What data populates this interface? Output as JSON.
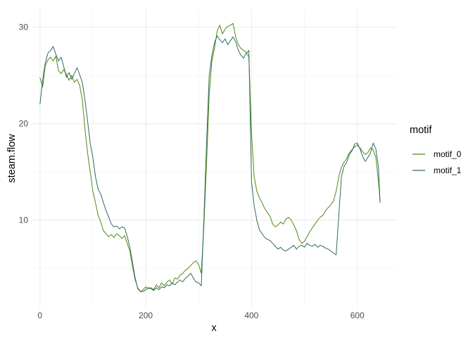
{
  "chart_data": {
    "type": "line",
    "title": "",
    "xlabel": "x",
    "ylabel": "steam.flow",
    "xlim": [
      -17,
      675
    ],
    "ylim": [
      1.0,
      31.8
    ],
    "x_ticks": [
      0,
      200,
      400,
      600
    ],
    "x_tick_labels": [
      "0",
      "200",
      "400",
      "600"
    ],
    "x_minor_ticks": [
      100,
      300,
      500
    ],
    "y_ticks": [
      10,
      20,
      30
    ],
    "y_tick_labels": [
      "10",
      "20",
      "30"
    ],
    "y_minor_ticks": [
      5,
      15,
      25
    ],
    "grid": true,
    "legend": {
      "title": "motif",
      "position": "right"
    },
    "series": [
      {
        "name": "motif_0",
        "color": "#4f8a10",
        "points": [
          [
            0,
            24.8
          ],
          [
            5,
            23.8
          ],
          [
            10,
            26.0
          ],
          [
            15,
            26.6
          ],
          [
            20,
            26.9
          ],
          [
            25,
            26.5
          ],
          [
            30,
            27.0
          ],
          [
            35,
            25.5
          ],
          [
            40,
            25.2
          ],
          [
            45,
            25.6
          ],
          [
            50,
            25.1
          ],
          [
            55,
            24.5
          ],
          [
            60,
            25.0
          ],
          [
            65,
            24.3
          ],
          [
            70,
            24.6
          ],
          [
            75,
            24.0
          ],
          [
            80,
            22.5
          ],
          [
            85,
            19.5
          ],
          [
            90,
            17.0
          ],
          [
            95,
            15.0
          ],
          [
            100,
            13.0
          ],
          [
            105,
            11.8
          ],
          [
            110,
            10.5
          ],
          [
            115,
            9.8
          ],
          [
            120,
            8.9
          ],
          [
            125,
            8.6
          ],
          [
            130,
            8.3
          ],
          [
            135,
            8.5
          ],
          [
            140,
            8.2
          ],
          [
            145,
            8.6
          ],
          [
            150,
            8.4
          ],
          [
            155,
            8.1
          ],
          [
            160,
            8.4
          ],
          [
            165,
            7.6
          ],
          [
            170,
            6.8
          ],
          [
            175,
            5.2
          ],
          [
            180,
            3.8
          ],
          [
            185,
            3.0
          ],
          [
            190,
            2.6
          ],
          [
            195,
            2.8
          ],
          [
            200,
            3.1
          ],
          [
            205,
            2.9
          ],
          [
            210,
            3.0
          ],
          [
            215,
            2.8
          ],
          [
            220,
            3.3
          ],
          [
            225,
            3.0
          ],
          [
            230,
            3.5
          ],
          [
            235,
            3.2
          ],
          [
            240,
            3.6
          ],
          [
            245,
            3.8
          ],
          [
            250,
            3.4
          ],
          [
            255,
            4.0
          ],
          [
            260,
            3.9
          ],
          [
            265,
            4.3
          ],
          [
            270,
            4.5
          ],
          [
            275,
            4.8
          ],
          [
            280,
            5.0
          ],
          [
            285,
            5.3
          ],
          [
            290,
            5.6
          ],
          [
            295,
            5.8
          ],
          [
            300,
            5.4
          ],
          [
            305,
            4.5
          ],
          [
            310,
            9.5
          ],
          [
            315,
            16.0
          ],
          [
            320,
            23.0
          ],
          [
            325,
            26.5
          ],
          [
            330,
            27.8
          ],
          [
            335,
            29.6
          ],
          [
            340,
            30.2
          ],
          [
            345,
            29.3
          ],
          [
            350,
            29.8
          ],
          [
            355,
            30.1
          ],
          [
            360,
            30.2
          ],
          [
            365,
            30.4
          ],
          [
            370,
            29.0
          ],
          [
            375,
            28.2
          ],
          [
            380,
            27.8
          ],
          [
            385,
            27.6
          ],
          [
            390,
            27.4
          ],
          [
            395,
            26.9
          ],
          [
            400,
            19.0
          ],
          [
            405,
            14.5
          ],
          [
            410,
            13.0
          ],
          [
            415,
            12.3
          ],
          [
            420,
            11.8
          ],
          [
            425,
            11.2
          ],
          [
            430,
            10.8
          ],
          [
            435,
            10.4
          ],
          [
            440,
            9.6
          ],
          [
            445,
            9.3
          ],
          [
            450,
            9.5
          ],
          [
            455,
            9.8
          ],
          [
            460,
            9.6
          ],
          [
            465,
            10.1
          ],
          [
            470,
            10.3
          ],
          [
            475,
            10.0
          ],
          [
            480,
            9.5
          ],
          [
            485,
            8.9
          ],
          [
            490,
            8.0
          ],
          [
            495,
            7.6
          ],
          [
            500,
            7.8
          ],
          [
            505,
            8.3
          ],
          [
            510,
            8.8
          ],
          [
            515,
            9.2
          ],
          [
            520,
            9.6
          ],
          [
            525,
            10.0
          ],
          [
            530,
            10.3
          ],
          [
            535,
            10.5
          ],
          [
            540,
            11.0
          ],
          [
            545,
            11.3
          ],
          [
            550,
            11.6
          ],
          [
            555,
            12.0
          ],
          [
            560,
            13.0
          ],
          [
            565,
            14.5
          ],
          [
            570,
            15.5
          ],
          [
            575,
            16.0
          ],
          [
            580,
            16.4
          ],
          [
            585,
            17.0
          ],
          [
            590,
            17.3
          ],
          [
            595,
            17.6
          ],
          [
            600,
            17.8
          ],
          [
            605,
            17.5
          ],
          [
            610,
            17.1
          ],
          [
            615,
            16.8
          ],
          [
            620,
            17.0
          ],
          [
            625,
            17.5
          ],
          [
            630,
            17.3
          ],
          [
            635,
            16.5
          ],
          [
            640,
            14.0
          ],
          [
            643,
            12.0
          ]
        ]
      },
      {
        "name": "motif_1",
        "color": "#2f6a5f",
        "points": [
          [
            0,
            22.0
          ],
          [
            5,
            24.5
          ],
          [
            10,
            26.3
          ],
          [
            15,
            27.3
          ],
          [
            20,
            27.6
          ],
          [
            25,
            28.0
          ],
          [
            30,
            27.2
          ],
          [
            35,
            26.5
          ],
          [
            40,
            26.9
          ],
          [
            45,
            25.9
          ],
          [
            50,
            24.8
          ],
          [
            55,
            25.3
          ],
          [
            60,
            24.6
          ],
          [
            65,
            25.2
          ],
          [
            70,
            25.8
          ],
          [
            75,
            25.1
          ],
          [
            80,
            24.3
          ],
          [
            85,
            22.5
          ],
          [
            90,
            20.3
          ],
          [
            95,
            18.0
          ],
          [
            100,
            16.5
          ],
          [
            105,
            14.5
          ],
          [
            110,
            13.2
          ],
          [
            115,
            12.7
          ],
          [
            120,
            11.8
          ],
          [
            125,
            11.0
          ],
          [
            130,
            10.3
          ],
          [
            135,
            9.6
          ],
          [
            140,
            9.3
          ],
          [
            145,
            9.4
          ],
          [
            150,
            9.1
          ],
          [
            155,
            9.3
          ],
          [
            160,
            9.2
          ],
          [
            165,
            8.3
          ],
          [
            170,
            7.2
          ],
          [
            175,
            5.6
          ],
          [
            180,
            4.0
          ],
          [
            185,
            2.9
          ],
          [
            190,
            2.6
          ],
          [
            195,
            2.6
          ],
          [
            200,
            2.8
          ],
          [
            205,
            3.0
          ],
          [
            210,
            2.9
          ],
          [
            215,
            2.7
          ],
          [
            220,
            3.0
          ],
          [
            225,
            2.8
          ],
          [
            230,
            3.1
          ],
          [
            235,
            3.0
          ],
          [
            240,
            3.3
          ],
          [
            245,
            3.2
          ],
          [
            250,
            3.5
          ],
          [
            255,
            3.3
          ],
          [
            260,
            3.6
          ],
          [
            265,
            3.8
          ],
          [
            270,
            3.6
          ],
          [
            275,
            4.0
          ],
          [
            280,
            4.2
          ],
          [
            285,
            4.5
          ],
          [
            290,
            4.0
          ],
          [
            295,
            3.6
          ],
          [
            300,
            3.5
          ],
          [
            305,
            3.2
          ],
          [
            310,
            10.2
          ],
          [
            315,
            18.0
          ],
          [
            320,
            25.0
          ],
          [
            325,
            27.0
          ],
          [
            330,
            28.4
          ],
          [
            335,
            29.1
          ],
          [
            340,
            28.7
          ],
          [
            345,
            28.4
          ],
          [
            350,
            28.8
          ],
          [
            355,
            28.2
          ],
          [
            360,
            28.6
          ],
          [
            365,
            29.0
          ],
          [
            370,
            28.5
          ],
          [
            375,
            27.6
          ],
          [
            380,
            27.1
          ],
          [
            385,
            26.8
          ],
          [
            390,
            27.3
          ],
          [
            395,
            27.6
          ],
          [
            400,
            14.0
          ],
          [
            405,
            11.5
          ],
          [
            410,
            10.0
          ],
          [
            415,
            9.0
          ],
          [
            420,
            8.6
          ],
          [
            425,
            8.2
          ],
          [
            430,
            8.0
          ],
          [
            435,
            7.9
          ],
          [
            440,
            7.6
          ],
          [
            445,
            7.3
          ],
          [
            450,
            7.0
          ],
          [
            455,
            7.2
          ],
          [
            460,
            6.9
          ],
          [
            465,
            6.8
          ],
          [
            470,
            7.0
          ],
          [
            475,
            7.2
          ],
          [
            480,
            7.4
          ],
          [
            485,
            7.0
          ],
          [
            490,
            7.3
          ],
          [
            495,
            7.4
          ],
          [
            500,
            7.2
          ],
          [
            505,
            7.6
          ],
          [
            510,
            7.4
          ],
          [
            515,
            7.3
          ],
          [
            520,
            7.5
          ],
          [
            525,
            7.2
          ],
          [
            530,
            7.4
          ],
          [
            535,
            7.3
          ],
          [
            540,
            7.1
          ],
          [
            545,
            7.0
          ],
          [
            550,
            6.8
          ],
          [
            555,
            6.6
          ],
          [
            560,
            6.4
          ],
          [
            565,
            10.5
          ],
          [
            570,
            14.5
          ],
          [
            575,
            15.6
          ],
          [
            580,
            16.0
          ],
          [
            585,
            16.8
          ],
          [
            590,
            17.2
          ],
          [
            595,
            17.9
          ],
          [
            600,
            18.0
          ],
          [
            605,
            17.4
          ],
          [
            610,
            16.6
          ],
          [
            615,
            16.1
          ],
          [
            620,
            16.5
          ],
          [
            625,
            17.0
          ],
          [
            630,
            18.0
          ],
          [
            635,
            17.4
          ],
          [
            640,
            15.5
          ],
          [
            643,
            11.8
          ]
        ]
      }
    ]
  }
}
